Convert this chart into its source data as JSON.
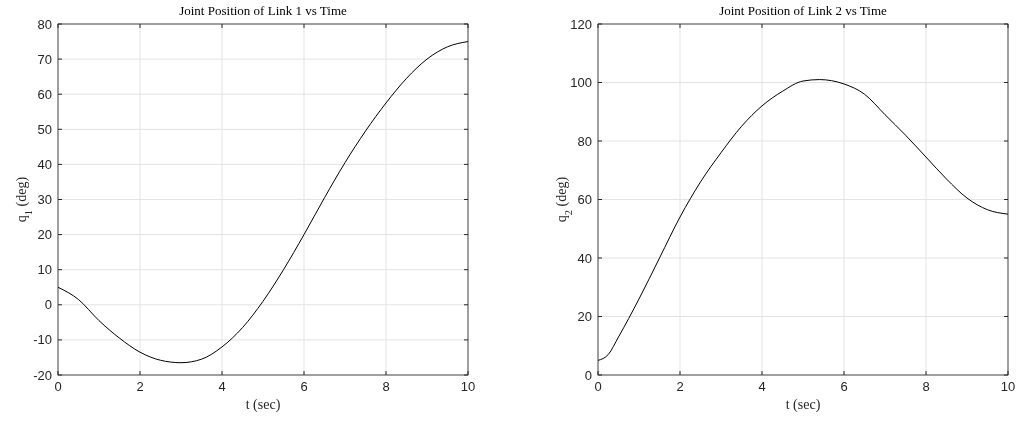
{
  "chart_data": [
    {
      "type": "line",
      "title": "Joint Position of Link 1 vs Time",
      "xlabel": "t (sec)",
      "ylabel": "q$_{1}$ (deg)",
      "x": [
        0,
        0.5,
        1,
        1.5,
        2,
        2.5,
        3,
        3.5,
        4,
        4.5,
        5,
        5.5,
        6,
        6.5,
        7,
        7.5,
        8,
        8.5,
        9,
        9.5,
        10
      ],
      "series": [
        {
          "color": "#000000",
          "values": [
            5,
            1.5,
            -4.5,
            -9.5,
            -13.5,
            -15.8,
            -16.5,
            -15.5,
            -12,
            -6.5,
            1,
            10,
            20,
            30.5,
            40.5,
            49.5,
            57.5,
            64.5,
            70,
            73.5,
            75
          ]
        }
      ],
      "xlim": [
        0,
        10
      ],
      "xticks": [
        0,
        2,
        4,
        6,
        8,
        10
      ],
      "ylim": [
        -20,
        80
      ],
      "yticks": [
        -20,
        -10,
        0,
        10,
        20,
        30,
        40,
        50,
        60,
        70,
        80
      ],
      "grid": true,
      "marker": "none",
      "line_style": "solid"
    },
    {
      "type": "line",
      "title": "Joint Position of Link 2 vs Time",
      "xlabel": "t (sec)",
      "ylabel": "q$_{2}$ (deg)",
      "x": [
        0,
        0.25,
        0.5,
        1,
        1.5,
        2,
        2.5,
        3,
        3.5,
        4,
        4.5,
        5,
        5.4,
        6,
        6.5,
        7,
        7.5,
        8,
        8.5,
        9,
        9.5,
        10
      ],
      "series": [
        {
          "color": "#000000",
          "values": [
            5,
            7,
            13,
            26,
            40,
            54,
            66,
            76,
            85,
            92,
            97,
            100.5,
            101,
            99.5,
            96,
            89,
            82,
            74.5,
            67,
            60.5,
            56.5,
            55
          ]
        }
      ],
      "xlim": [
        0,
        10
      ],
      "xticks": [
        0,
        2,
        4,
        6,
        8,
        10
      ],
      "ylim": [
        0,
        120
      ],
      "yticks": [
        0,
        20,
        40,
        60,
        80,
        100,
        120
      ],
      "grid": true,
      "marker": "none",
      "line_style": "solid"
    }
  ]
}
